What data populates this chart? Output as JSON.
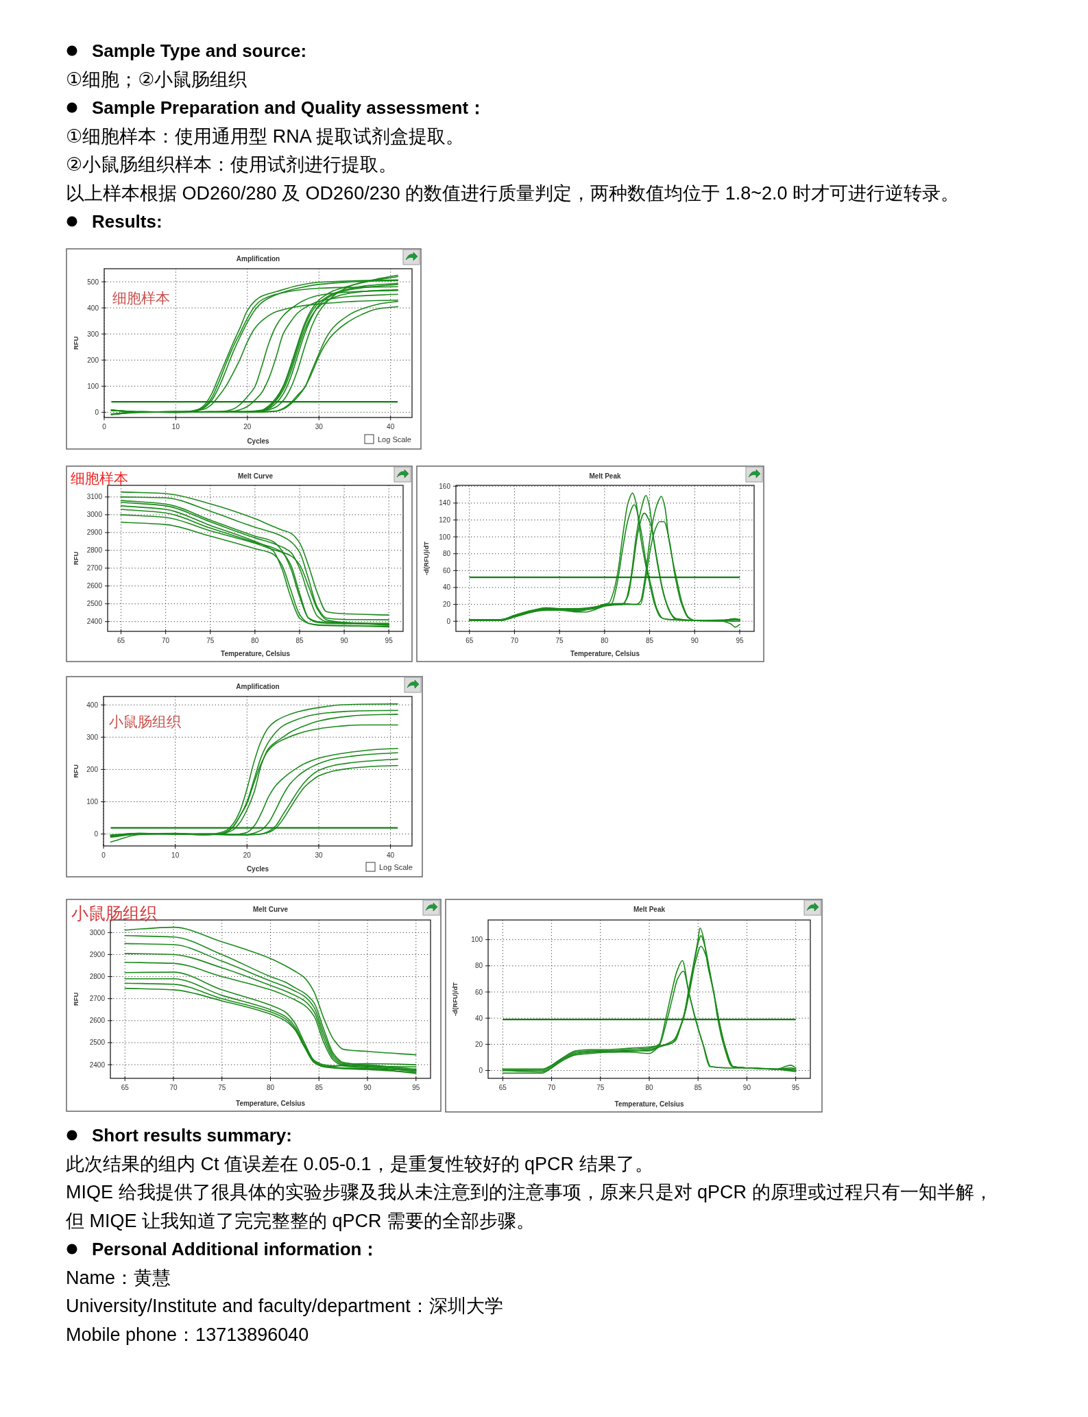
{
  "chart_data": [
    {
      "type": "other",
      "title": "Sample Type and source:",
      "annotations": [
        "①细胞；②小鼠肠组织"
      ]
    },
    {
      "type": "other",
      "title": "Sample Preparation and Quality assessment：",
      "annotations": [
        "①细胞样本：使用通用型 RNA 提取试剂盒提取。",
        "②小鼠肠组织样本：使用试剂进行提取。",
        "以上样本根据 OD260/280 及 OD260/230 的数值进行质量判定，两种数值均位于 1.8~2.0 时才可进行逆转录。"
      ]
    },
    {
      "type": "other",
      "title": "Results:"
    },
    {
      "type": "line",
      "title": "Amplification",
      "xlabel": "Cycles",
      "ylabel": "RFU",
      "annotations": [
        "细胞样本",
        "Log Scale"
      ],
      "xlim": [
        0,
        43
      ],
      "xticks": [
        0,
        10,
        20,
        30,
        40
      ],
      "ylim": [
        -20,
        550
      ],
      "yticks": [
        0,
        100,
        200,
        300,
        400,
        500
      ],
      "grid": true,
      "ref_lines": [
        {
          "axis": "y",
          "value": 40,
          "color": "#107c10"
        }
      ],
      "series": [
        {
          "color": "#1a8a1a",
          "x": [
            1,
            5,
            10,
            12,
            13,
            14,
            15,
            16,
            17,
            18,
            19,
            20,
            21,
            22,
            24,
            27,
            30,
            35,
            41
          ],
          "values": [
            -7,
            1,
            2,
            4,
            10,
            28,
            70,
            135,
            200,
            265,
            325,
            390,
            425,
            445,
            462,
            485,
            498,
            504,
            507
          ]
        },
        {
          "color": "#1a8a1a",
          "x": [
            1,
            5,
            10,
            12,
            13,
            14,
            15,
            16,
            17,
            18,
            19,
            20,
            21,
            22,
            24,
            27,
            30,
            35,
            41
          ],
          "values": [
            -8,
            1,
            0,
            2,
            7,
            22,
            55,
            115,
            185,
            250,
            305,
            360,
            405,
            430,
            452,
            468,
            475,
            479,
            481
          ]
        },
        {
          "color": "#1a8a1a",
          "x": [
            1,
            5,
            10,
            12,
            13,
            14,
            15,
            16,
            17,
            18,
            19,
            20,
            21,
            22,
            24,
            27,
            30,
            35,
            41
          ],
          "values": [
            7,
            2,
            1,
            3,
            6,
            18,
            45,
            95,
            160,
            230,
            290,
            345,
            390,
            420,
            450,
            475,
            490,
            500,
            505
          ]
        },
        {
          "color": "#1a8a1a",
          "x": [
            1,
            5,
            10,
            12,
            14,
            15,
            16,
            17,
            18,
            19,
            20,
            21,
            22,
            24,
            27,
            30,
            35,
            41
          ],
          "values": [
            9,
            0,
            2,
            3,
            12,
            30,
            62,
            100,
            150,
            205,
            270,
            320,
            350,
            385,
            405,
            415,
            425,
            430
          ]
        },
        {
          "color": "#1a8a1a",
          "x": [
            1,
            5,
            10,
            15,
            17,
            18,
            19,
            20,
            21,
            22,
            23,
            24,
            25,
            26,
            28,
            30,
            35,
            41
          ],
          "values": [
            -7,
            2,
            0,
            2,
            5,
            12,
            30,
            60,
            95,
            175,
            265,
            330,
            370,
            395,
            430,
            448,
            462,
            467
          ]
        },
        {
          "color": "#1a8a1a",
          "x": [
            1,
            5,
            10,
            15,
            18,
            19,
            20,
            21,
            22,
            23,
            24,
            25,
            26,
            27,
            28,
            30,
            35,
            41
          ],
          "values": [
            7,
            1,
            2,
            1,
            4,
            10,
            22,
            45,
            75,
            130,
            210,
            300,
            345,
            380,
            400,
            425,
            445,
            452
          ]
        },
        {
          "color": "#1a8a1a",
          "x": [
            1,
            5,
            10,
            15,
            20,
            22,
            23,
            24,
            25,
            26,
            27,
            28,
            29,
            30,
            31,
            32,
            34,
            37,
            41
          ],
          "values": [
            -8,
            0,
            1,
            2,
            3,
            8,
            25,
            55,
            100,
            175,
            260,
            340,
            395,
            430,
            450,
            465,
            482,
            502,
            520
          ]
        },
        {
          "color": "#1a8a1a",
          "x": [
            1,
            5,
            10,
            15,
            20,
            22,
            23,
            24,
            25,
            26,
            27,
            28,
            29,
            30,
            31,
            32,
            34,
            37,
            41
          ],
          "values": [
            -9,
            1,
            2,
            1,
            2,
            7,
            20,
            48,
            95,
            165,
            250,
            330,
            385,
            420,
            440,
            455,
            472,
            486,
            494
          ]
        },
        {
          "color": "#1a8a1a",
          "x": [
            1,
            5,
            10,
            15,
            20,
            22,
            23,
            24,
            25,
            26,
            27,
            28,
            29,
            30,
            31,
            32,
            34,
            37,
            41
          ],
          "values": [
            9,
            2,
            0,
            1,
            2,
            5,
            14,
            35,
            70,
            130,
            215,
            300,
            365,
            410,
            435,
            450,
            468,
            480,
            490
          ]
        },
        {
          "color": "#1a8a1a",
          "x": [
            1,
            5,
            10,
            15,
            20,
            22,
            23,
            24,
            25,
            26,
            27,
            28,
            29,
            30,
            31,
            32,
            34,
            37,
            41
          ],
          "values": [
            8,
            1,
            0,
            2,
            1,
            6,
            18,
            45,
            85,
            150,
            235,
            315,
            370,
            405,
            425,
            440,
            455,
            465,
            470
          ]
        },
        {
          "color": "#1a8a1a",
          "x": [
            1,
            5,
            10,
            15,
            20,
            22,
            24,
            25,
            26,
            27,
            28,
            29,
            30,
            31,
            32,
            33,
            35,
            38,
            41
          ],
          "values": [
            8,
            1,
            2,
            1,
            2,
            4,
            20,
            45,
            90,
            160,
            250,
            330,
            385,
            420,
            445,
            465,
            490,
            510,
            525
          ]
        },
        {
          "color": "#1a8a1a",
          "x": [
            1,
            5,
            10,
            15,
            20,
            24,
            25,
            26,
            27,
            28,
            29,
            30,
            31,
            32,
            33,
            35,
            37,
            39,
            41
          ],
          "values": [
            -9,
            0,
            2,
            1,
            1,
            5,
            15,
            35,
            65,
            95,
            160,
            225,
            285,
            325,
            350,
            385,
            405,
            418,
            425
          ]
        },
        {
          "color": "#1a8a1a",
          "x": [
            1,
            5,
            10,
            15,
            20,
            24,
            25,
            26,
            27,
            28,
            29,
            30,
            31,
            32,
            34,
            36,
            38,
            41
          ],
          "values": [
            8,
            2,
            1,
            2,
            0,
            4,
            12,
            30,
            58,
            95,
            150,
            215,
            265,
            300,
            345,
            375,
            395,
            405
          ]
        }
      ]
    },
    {
      "type": "line",
      "title": "Melt Curve",
      "xlabel": "Temperature, Celsius",
      "ylabel": "RFU",
      "annotations": [
        "细胞样本"
      ],
      "xlim": [
        63.5,
        96.6
      ],
      "xticks": [
        65,
        70,
        75,
        80,
        85,
        90,
        95
      ],
      "ylim": [
        2345,
        3165
      ],
      "yticks": [
        2400,
        2500,
        2600,
        2700,
        2800,
        2900,
        3000,
        3100
      ],
      "grid": true,
      "series": [
        {
          "color": "#1a8a1a",
          "x": [
            65,
            70,
            75,
            80,
            82,
            83,
            84,
            85,
            86,
            87,
            88,
            90,
            95
          ],
          "values": [
            3128,
            3119,
            3061,
            2978,
            2935,
            2915,
            2897,
            2843,
            2714,
            2560,
            2456,
            2444,
            2437
          ]
        },
        {
          "color": "#1a8a1a",
          "x": [
            65,
            70,
            75,
            80,
            82,
            83,
            84,
            85,
            86,
            87,
            88,
            90,
            95
          ],
          "values": [
            3100,
            3095,
            3020,
            2930,
            2900,
            2880,
            2850,
            2790,
            2640,
            2480,
            2420,
            2412,
            2410
          ]
        },
        {
          "color": "#1a8a1a",
          "x": [
            65,
            70,
            75,
            80,
            82,
            83,
            84,
            85,
            86,
            87,
            88,
            90,
            95
          ],
          "values": [
            3080,
            3060,
            2970,
            2880,
            2850,
            2800,
            2700,
            2540,
            2420,
            2400,
            2395,
            2392,
            2390
          ]
        },
        {
          "color": "#1a8a1a",
          "x": [
            65,
            70,
            75,
            80,
            82,
            83,
            84,
            85,
            86,
            87,
            88,
            90,
            95
          ],
          "values": [
            3050,
            3030,
            2940,
            2850,
            2800,
            2700,
            2540,
            2420,
            2390,
            2382,
            2380,
            2378,
            2370
          ]
        },
        {
          "color": "#1a8a1a",
          "x": [
            65,
            70,
            75,
            80,
            82,
            83,
            84,
            85,
            86,
            87,
            88,
            90,
            95
          ],
          "values": [
            3000,
            2985,
            2910,
            2840,
            2805,
            2790,
            2770,
            2720,
            2600,
            2470,
            2410,
            2395,
            2385
          ]
        },
        {
          "color": "#1a8a1a",
          "x": [
            65,
            70,
            75,
            80,
            82,
            83,
            84,
            85,
            86,
            87,
            88,
            90,
            95
          ],
          "values": [
            2958,
            2945,
            2880,
            2810,
            2780,
            2720,
            2580,
            2440,
            2390,
            2380,
            2378,
            2376,
            2375
          ]
        },
        {
          "color": "#1a8a1a",
          "x": [
            65,
            70,
            75,
            80,
            82,
            83,
            84,
            85,
            86,
            87,
            88,
            90,
            95
          ],
          "values": [
            3070,
            3050,
            2960,
            2870,
            2840,
            2820,
            2790,
            2700,
            2550,
            2430,
            2400,
            2395,
            2380
          ]
        },
        {
          "color": "#1a8a1a",
          "x": [
            65,
            70,
            75,
            80,
            82,
            83,
            84,
            85,
            86,
            87,
            88,
            90,
            95
          ],
          "values": [
            3030,
            3010,
            2925,
            2845,
            2815,
            2790,
            2720,
            2560,
            2420,
            2395,
            2390,
            2388,
            2385
          ]
        }
      ]
    },
    {
      "type": "line",
      "title": "Melt Peak",
      "xlabel": "Temperature, Celsius",
      "ylabel": "-d(RFU)/dT",
      "xlim": [
        63.5,
        96.6
      ],
      "xticks": [
        65,
        70,
        75,
        80,
        85,
        90,
        95
      ],
      "ylim": [
        -12,
        161
      ],
      "yticks": [
        0,
        20,
        40,
        60,
        80,
        100,
        120,
        140,
        160
      ],
      "grid": true,
      "ref_lines": [
        {
          "axis": "y",
          "value": 52,
          "color": "#107c10"
        }
      ],
      "series": [
        {
          "color": "#1a8a1a",
          "x": [
            65,
            68.5,
            70,
            72,
            73.5,
            75,
            77,
            79,
            80,
            80.5,
            81,
            81.5,
            82,
            82.6,
            83.1,
            83.5,
            84,
            84.5,
            85,
            85.5,
            86.2,
            87,
            90,
            93,
            94.5,
            95
          ],
          "values": [
            2,
            2,
            7,
            13,
            15,
            14,
            14,
            17,
            20,
            22,
            35,
            60,
            100,
            140,
            152,
            140,
            100,
            70,
            45,
            22,
            5,
            2,
            1,
            1,
            2,
            1
          ]
        },
        {
          "color": "#1a8a1a",
          "x": [
            65,
            68.5,
            70,
            72,
            73.5,
            75,
            77,
            79,
            80,
            82,
            82.4,
            82.9,
            83.5,
            84,
            84.6,
            85,
            85.4,
            86,
            86.6,
            87.3,
            88,
            90,
            93,
            94.5,
            95
          ],
          "values": [
            1,
            2,
            6,
            12,
            15,
            15,
            14,
            17,
            19,
            20,
            26,
            50,
            100,
            130,
            149,
            135,
            100,
            60,
            30,
            10,
            3,
            1,
            1,
            3,
            1
          ]
        },
        {
          "color": "#1a8a1a",
          "x": [
            65,
            68.5,
            70,
            72,
            73.5,
            75,
            77,
            79,
            80,
            82,
            83.5,
            84,
            84.5,
            85,
            85.6,
            86,
            86.3,
            86.7,
            87.1,
            87.6,
            88,
            88.6,
            89.3,
            90,
            93,
            94.5,
            95
          ],
          "values": [
            2,
            2,
            7,
            13,
            16,
            15,
            15,
            17,
            20,
            21,
            20,
            24,
            52,
            95,
            130,
            143,
            148,
            135,
            100,
            70,
            50,
            22,
            5,
            1,
            1,
            3,
            2
          ]
        },
        {
          "color": "#1a8a1a",
          "x": [
            65,
            68.5,
            70,
            72,
            73.5,
            75,
            77,
            79,
            80,
            80.8,
            81.4,
            82,
            82.6,
            83.3,
            84,
            84.6,
            85.2,
            85.8,
            86.5,
            90,
            95
          ],
          "values": [
            1,
            1,
            6,
            12,
            14,
            14,
            13,
            15,
            18,
            21,
            45,
            85,
            120,
            138,
            110,
            70,
            40,
            15,
            3,
            1,
            2
          ]
        },
        {
          "color": "#1a8a1a",
          "x": [
            65,
            68.5,
            70,
            72,
            73.5,
            75,
            77,
            79,
            80,
            82,
            82.6,
            83.1,
            83.7,
            84.4,
            85.1,
            85.8,
            86.4,
            87,
            87.8,
            90,
            95
          ],
          "values": [
            2,
            1,
            5,
            11,
            14,
            14,
            12,
            16,
            19,
            20,
            30,
            60,
            105,
            128,
            115,
            75,
            40,
            18,
            3,
            1,
            0
          ]
        },
        {
          "color": "#1a8a1a",
          "x": [
            65,
            68.5,
            70,
            72,
            73.5,
            75,
            77,
            78,
            79,
            80,
            82,
            84,
            84.5,
            85,
            85.5,
            86.1,
            86.6,
            87.2,
            87.8,
            88.5,
            89.3,
            90,
            93,
            94,
            94.5,
            95
          ],
          "values": [
            1,
            1,
            5,
            11,
            13,
            13,
            11,
            11,
            14,
            18,
            20,
            20,
            45,
            80,
            105,
            118,
            118,
            95,
            55,
            22,
            4,
            1,
            0,
            -3,
            -7,
            -4
          ]
        }
      ]
    },
    {
      "type": "line",
      "title": "Amplification",
      "xlabel": "Cycles",
      "ylabel": "RFU",
      "annotations": [
        "小鼠肠组织",
        "Log Scale"
      ],
      "xlim": [
        0,
        43
      ],
      "xticks": [
        0,
        10,
        20,
        30,
        40
      ],
      "ylim": [
        -37,
        426
      ],
      "yticks": [
        0,
        100,
        200,
        300,
        400
      ],
      "grid": true,
      "ref_lines": [
        {
          "axis": "y",
          "value": 19,
          "color": "#107c10"
        }
      ],
      "series": [
        {
          "color": "#1a8a1a",
          "x": [
            1,
            5,
            10,
            14,
            15,
            16,
            17,
            18,
            19,
            20,
            21,
            22,
            23,
            24,
            25,
            27,
            29,
            31,
            33,
            36,
            41
          ],
          "values": [
            -3,
            2,
            0,
            -2,
            -1,
            3,
            10,
            30,
            70,
            140,
            225,
            290,
            330,
            350,
            362,
            378,
            388,
            395,
            400,
            402,
            403
          ]
        },
        {
          "color": "#1a8a1a",
          "x": [
            1,
            5,
            10,
            14,
            15,
            16,
            17,
            18,
            19,
            20,
            21,
            22,
            23,
            24,
            25,
            27,
            29,
            31,
            34,
            37,
            41
          ],
          "values": [
            -5,
            1,
            1,
            -3,
            -2,
            0,
            6,
            22,
            55,
            100,
            170,
            240,
            285,
            315,
            335,
            355,
            368,
            375,
            380,
            382,
            383
          ]
        },
        {
          "color": "#1a8a1a",
          "x": [
            1,
            5,
            10,
            14,
            16,
            17,
            18,
            19,
            20,
            21,
            22,
            23,
            24,
            25,
            26,
            28,
            30,
            33,
            36,
            41
          ],
          "values": [
            -8,
            0,
            2,
            -2,
            -1,
            3,
            12,
            35,
            75,
            130,
            215,
            265,
            285,
            300,
            315,
            335,
            350,
            362,
            368,
            371
          ]
        },
        {
          "color": "#1a8a1a",
          "x": [
            1,
            5,
            10,
            14,
            16,
            17,
            18,
            19,
            20,
            21,
            22,
            23,
            24,
            25,
            27,
            29,
            32,
            36,
            41
          ],
          "values": [
            -4,
            2,
            0,
            -1,
            0,
            5,
            20,
            55,
            95,
            160,
            220,
            260,
            280,
            292,
            310,
            322,
            332,
            338,
            338
          ]
        },
        {
          "color": "#1a8a1a",
          "x": [
            1,
            5,
            10,
            15,
            18,
            19,
            20,
            21,
            22,
            23,
            24,
            25,
            26,
            27,
            28,
            30,
            32,
            35,
            38,
            41
          ],
          "values": [
            -6,
            0,
            1,
            -2,
            -2,
            0,
            5,
            25,
            65,
            115,
            150,
            172,
            190,
            205,
            218,
            235,
            245,
            255,
            262,
            265
          ]
        },
        {
          "color": "#1a8a1a",
          "x": [
            1,
            5,
            10,
            15,
            18,
            20,
            21,
            22,
            23,
            24,
            25,
            26,
            27,
            28,
            29,
            30,
            32,
            35,
            38,
            41
          ],
          "values": [
            -4,
            1,
            0,
            -1,
            -3,
            -2,
            3,
            12,
            35,
            75,
            120,
            155,
            178,
            195,
            208,
            218,
            232,
            242,
            248,
            252
          ]
        },
        {
          "color": "#1a8a1a",
          "x": [
            1,
            5,
            10,
            15,
            18,
            20,
            22,
            23,
            24,
            25,
            26,
            27,
            28,
            29,
            30,
            32,
            35,
            38,
            41
          ],
          "values": [
            -25,
            -2,
            1,
            0,
            -2,
            -3,
            0,
            8,
            25,
            60,
            95,
            130,
            160,
            182,
            197,
            212,
            222,
            228,
            232
          ]
        },
        {
          "color": "#1a8a1a",
          "x": [
            1,
            5,
            10,
            15,
            20,
            22,
            23,
            24,
            25,
            26,
            27,
            28,
            29,
            30,
            32,
            35,
            38,
            41
          ],
          "values": [
            -10,
            0,
            -1,
            1,
            -2,
            0,
            5,
            18,
            45,
            80,
            115,
            145,
            165,
            180,
            195,
            205,
            210,
            212
          ]
        }
      ]
    },
    {
      "type": "line",
      "title": "Melt Curve",
      "xlabel": "Temperature, Celsius",
      "ylabel": "RFU",
      "annotations": [
        "小鼠肠组织"
      ],
      "xlim": [
        63.5,
        96.5
      ],
      "xticks": [
        65,
        70,
        75,
        80,
        85,
        90,
        95
      ],
      "ylim": [
        2338,
        3057
      ],
      "yticks": [
        2400,
        2500,
        2600,
        2700,
        2800,
        2900,
        3000
      ],
      "grid": true,
      "series": [
        {
          "color": "#1a8a1a",
          "x": [
            65,
            70,
            75,
            80,
            81.5,
            82.5,
            83.5,
            84.5,
            85.5,
            86.5,
            87.5,
            90,
            95
          ],
          "values": [
            3011,
            3024,
            2958,
            2882,
            2850,
            2825,
            2795,
            2730,
            2610,
            2515,
            2470,
            2460,
            2445
          ]
        },
        {
          "color": "#1a8a1a",
          "x": [
            65,
            70,
            75,
            80,
            81.5,
            82.5,
            83.5,
            84.5,
            85.5,
            86.5,
            87.5,
            90,
            95
          ],
          "values": [
            2986,
            2980,
            2900,
            2800,
            2775,
            2750,
            2725,
            2680,
            2560,
            2450,
            2410,
            2400,
            2380
          ]
        },
        {
          "color": "#1a8a1a",
          "x": [
            65,
            70,
            75,
            80,
            81.5,
            82.5,
            83.5,
            84.5,
            85.5,
            86.5,
            87.5,
            90,
            95
          ],
          "values": [
            2950,
            2945,
            2870,
            2780,
            2755,
            2735,
            2710,
            2660,
            2540,
            2440,
            2405,
            2395,
            2375
          ]
        },
        {
          "color": "#1a8a1a",
          "x": [
            65,
            70,
            75,
            80,
            81.5,
            82.5,
            83.5,
            84.5,
            85.5,
            86.5,
            87.5,
            90,
            95
          ],
          "values": [
            2905,
            2900,
            2840,
            2760,
            2735,
            2715,
            2690,
            2640,
            2520,
            2430,
            2400,
            2390,
            2370
          ]
        },
        {
          "color": "#1a8a1a",
          "x": [
            65,
            70,
            75,
            80,
            81.5,
            82.5,
            83.5,
            84.5,
            85.5,
            86.5,
            87.5,
            90,
            95
          ],
          "values": [
            2865,
            2860,
            2800,
            2740,
            2715,
            2695,
            2670,
            2620,
            2500,
            2420,
            2395,
            2385,
            2360
          ]
        },
        {
          "color": "#1a8a1a",
          "x": [
            65,
            70,
            75,
            80,
            81.5,
            82.5,
            83.5,
            84.5,
            85.5,
            86.5,
            87.5,
            90,
            95
          ],
          "values": [
            2818,
            2820,
            2740,
            2670,
            2640,
            2590,
            2500,
            2420,
            2400,
            2395,
            2395,
            2393,
            2390
          ]
        },
        {
          "color": "#1a8a1a",
          "x": [
            65,
            70,
            75,
            80,
            81.5,
            82.5,
            83.5,
            84.5,
            85.5,
            86.5,
            87.5,
            90,
            95
          ],
          "values": [
            2790,
            2790,
            2715,
            2650,
            2620,
            2575,
            2490,
            2415,
            2395,
            2392,
            2400,
            2405,
            2400
          ]
        },
        {
          "color": "#1a8a1a",
          "x": [
            65,
            70,
            75,
            80,
            81.5,
            82.5,
            83.5,
            84.5,
            85.5,
            86.5,
            87.5,
            90,
            95
          ],
          "values": [
            2770,
            2765,
            2700,
            2640,
            2610,
            2565,
            2485,
            2410,
            2392,
            2388,
            2385,
            2382,
            2375
          ]
        },
        {
          "color": "#1a8a1a",
          "x": [
            65,
            70,
            75,
            80,
            81.5,
            82.5,
            83.5,
            84.5,
            85.5,
            86.5,
            87.5,
            90,
            95
          ],
          "values": [
            2747,
            2740,
            2690,
            2630,
            2600,
            2560,
            2480,
            2410,
            2390,
            2385,
            2382,
            2378,
            2365
          ]
        }
      ]
    },
    {
      "type": "line",
      "title": "Melt Peak",
      "xlabel": "Temperature, Celsius",
      "ylabel": "-d(RFU)/dT",
      "xlim": [
        63.5,
        96.5
      ],
      "xticks": [
        65,
        70,
        75,
        80,
        85,
        90,
        95
      ],
      "ylim": [
        -6,
        115
      ],
      "yticks": [
        0,
        20,
        40,
        60,
        80,
        100
      ],
      "grid": true,
      "ref_lines": [
        {
          "axis": "y",
          "value": 39,
          "color": "#107c10"
        }
      ],
      "series": [
        {
          "color": "#1a8a1a",
          "x": [
            65,
            69,
            70,
            71,
            72.5,
            74,
            76,
            78,
            80,
            81,
            81.7,
            82.3,
            82.8,
            83.4,
            84,
            84.7,
            85.5,
            86.2,
            88,
            90,
            93,
            95
          ],
          "values": [
            1,
            1,
            4,
            9,
            14,
            15,
            15,
            16,
            17,
            20,
            40,
            60,
            75,
            84,
            62,
            40,
            20,
            3,
            2,
            2,
            1,
            1
          ]
        },
        {
          "color": "#1a8a1a",
          "x": [
            65,
            69,
            70,
            71,
            72.5,
            74,
            76,
            78,
            80,
            81,
            81.8,
            82.4,
            82.9,
            83.5,
            84.1,
            84.8,
            85.6,
            86.3,
            88,
            90,
            93,
            95
          ],
          "values": [
            0,
            0,
            3,
            8,
            13,
            14,
            15,
            15,
            16,
            19,
            38,
            56,
            70,
            76,
            58,
            38,
            18,
            3,
            2,
            2,
            1,
            0
          ]
        },
        {
          "color": "#1a8a1a",
          "x": [
            65,
            69,
            70,
            71,
            72.5,
            74,
            76,
            78,
            80,
            81,
            82,
            82.5,
            83,
            83.5,
            84,
            84.5,
            85,
            85.2,
            85.6,
            86,
            86.6,
            87,
            87.6,
            88.5,
            90,
            93,
            94.5,
            95
          ],
          "values": [
            1,
            1,
            4,
            9,
            15,
            16,
            16,
            17,
            18,
            19,
            20,
            22,
            30,
            40,
            60,
            80,
            100,
            109,
            100,
            80,
            60,
            40,
            20,
            3,
            2,
            1,
            4,
            2
          ]
        },
        {
          "color": "#1a8a1a",
          "x": [
            65,
            69,
            70,
            71,
            72.5,
            74,
            76,
            78,
            80,
            81,
            82,
            82.7,
            83.2,
            83.7,
            84.2,
            84.7,
            85.3,
            85.8,
            86.3,
            86.8,
            87.2,
            87.8,
            88.6,
            90,
            93,
            94.5,
            95
          ],
          "values": [
            0,
            -1,
            2,
            8,
            13,
            14,
            14,
            15,
            15,
            18,
            20,
            23,
            33,
            45,
            63,
            82,
            95,
            88,
            70,
            52,
            36,
            18,
            3,
            2,
            1,
            2,
            1
          ]
        },
        {
          "color": "#1a8a1a",
          "x": [
            65,
            69,
            70,
            71,
            72.5,
            74,
            76,
            78,
            80,
            81,
            82,
            82.6,
            83.1,
            83.6,
            84.1,
            84.6,
            85.1,
            85.3,
            85.7,
            86.2,
            86.7,
            87.1,
            87.7,
            88.6,
            90,
            93,
            95
          ],
          "values": [
            -2,
            -2,
            2,
            7,
            12,
            13,
            14,
            14,
            13,
            18,
            21,
            24,
            32,
            44,
            62,
            82,
            100,
            103,
            95,
            76,
            56,
            40,
            20,
            3,
            2,
            1,
            -1
          ]
        }
      ]
    },
    {
      "type": "other",
      "title": "Short results summary:",
      "annotations": [
        "此次结果的组内 Ct 值误差在 0.05-0.1，是重复性较好的 qPCR 结果了。",
        "MIQE 给我提供了很具体的实验步骤及我从未注意到的注意事项，原来只是对 qPCR 的原理或过程只有一知半解，",
        "但 MIQE 让我知道了完完整整的 qPCR 需要的全部步骤。"
      ]
    },
    {
      "type": "other",
      "title": "Personal Additional information：",
      "annotations": [
        "Name：黄慧",
        "University/Institute and faculty/department：深圳大学",
        "Mobile phone：13713896040"
      ]
    }
  ]
}
